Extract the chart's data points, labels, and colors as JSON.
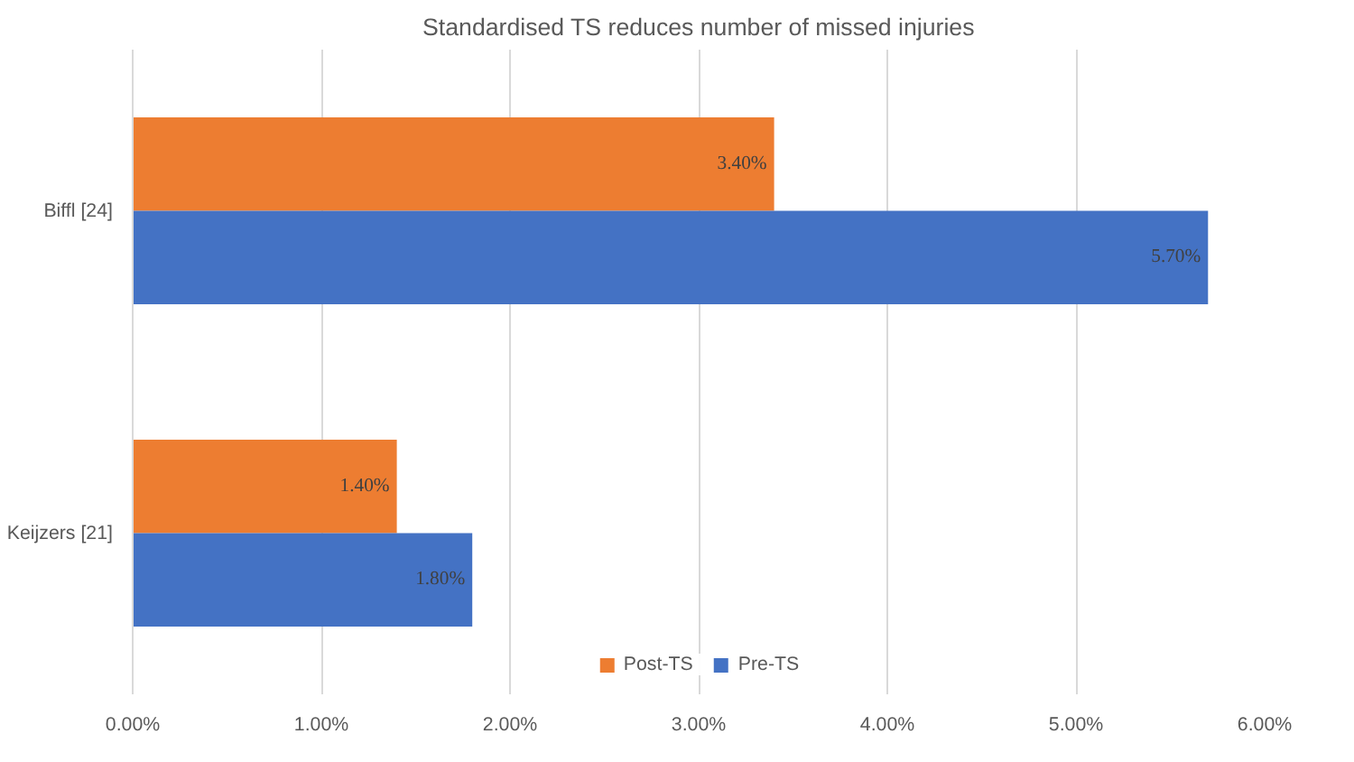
{
  "chart_data": {
    "type": "bar",
    "orientation": "horizontal",
    "title": "Standardised TS reduces number of missed injuries",
    "categories": [
      "Biffl [24]",
      "Keijzers [21]"
    ],
    "series": [
      {
        "name": "Post-TS",
        "color": "#ed7d31",
        "values": [
          3.4,
          1.4
        ],
        "value_labels": [
          "3.40%",
          "1.40%"
        ]
      },
      {
        "name": "Pre-TS",
        "color": "#4472c4",
        "values": [
          5.7,
          1.8
        ],
        "value_labels": [
          "5.70%",
          "1.80%"
        ]
      }
    ],
    "xlim": [
      0,
      6
    ],
    "xticks": [
      {
        "value": 0,
        "label": "0.00%"
      },
      {
        "value": 1,
        "label": "1.00%"
      },
      {
        "value": 2,
        "label": "2.00%"
      },
      {
        "value": 3,
        "label": "3.00%"
      },
      {
        "value": 4,
        "label": "4.00%"
      },
      {
        "value": 5,
        "label": "5.00%"
      },
      {
        "value": 6,
        "label": "6.00%"
      }
    ],
    "grid": "x",
    "legend": "bottom"
  }
}
